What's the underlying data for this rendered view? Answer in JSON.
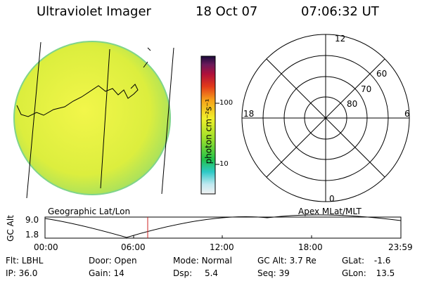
{
  "header": {
    "title": "Ultraviolet Imager",
    "date": "18 Oct 07",
    "time": "07:06:32 UT"
  },
  "colorbar": {
    "unit_label": "photon cm⁻²s⁻¹",
    "ticks": [
      "100",
      "10"
    ]
  },
  "polar": {
    "labels_top": "12",
    "labels_bottom": "0",
    "labels_left": "18",
    "labels_right": "6",
    "lat_60": "60",
    "lat_70": "70",
    "lat_80": "80"
  },
  "labels": {
    "geo": "Geographic Lat/Lon",
    "apex": "Apex MLat/MLT"
  },
  "altitude_plot": {
    "ylabel": "GC Alt",
    "y_top": "9.0",
    "y_bottom": "1.8",
    "x_ticks": [
      "00:00",
      "06:00",
      "12:00",
      "18:00",
      "23:59"
    ]
  },
  "status": {
    "flt_label": "Flt:",
    "flt_value": "LBHL",
    "ip_label": "IP:",
    "ip_value": "36.0",
    "door_label": "Door:",
    "door_value": "Open",
    "gain_label": "Gain:",
    "gain_value": "14",
    "mode_label": "Mode:",
    "mode_value": "Normal",
    "dsp_label": "Dsp:",
    "dsp_value": "5.4",
    "gcalt_label": "GC Alt:",
    "gcalt_value": "3.7 Re",
    "seq_label": "Seq:",
    "seq_value": "39",
    "glat_label": "GLat:",
    "glat_value": "-1.6",
    "glon_label": "GLon:",
    "glon_value": "13.5"
  },
  "colors": {
    "disk_fill": "#dff03a",
    "disk_edge": "#6fd08a",
    "marker": "#cc2222"
  }
}
